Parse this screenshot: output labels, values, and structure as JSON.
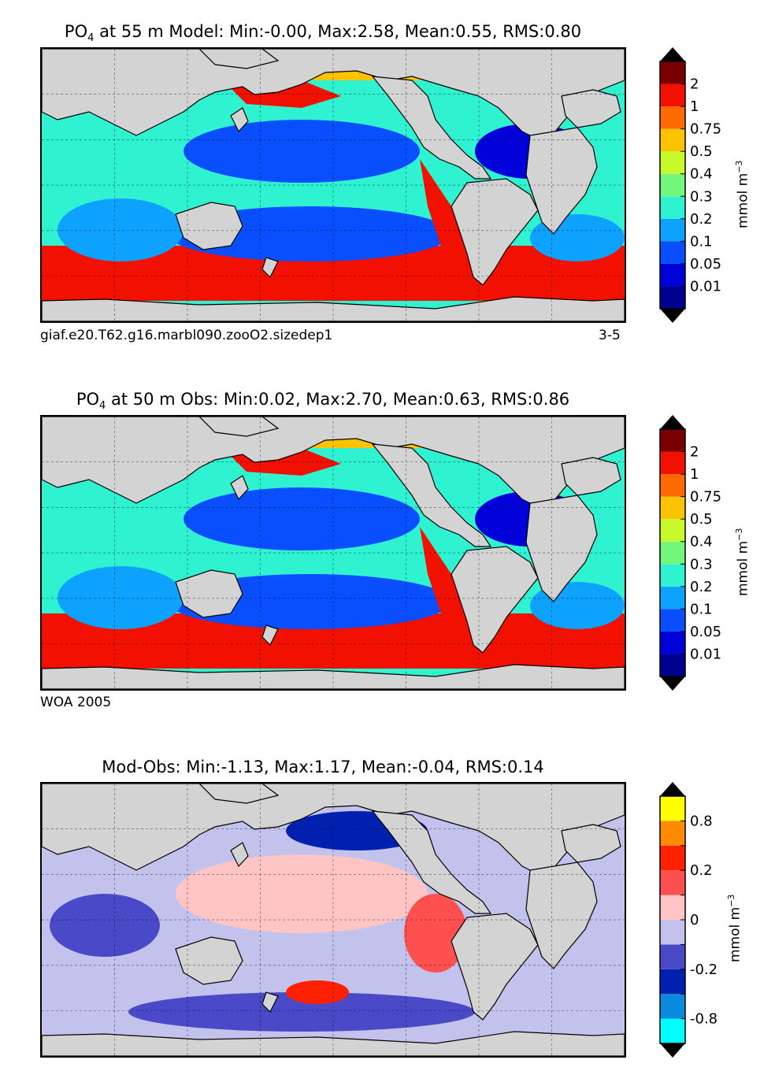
{
  "panels": [
    {
      "title_main": "PO",
      "title_sub": "4",
      "title_rest": " at 55 m Model: Min:-0.00, Max:2.58, Mean:0.55, RMS:0.80",
      "caption_left": "giaf.e20.T62.g16.marbl090.zooO2.sizedep1",
      "caption_right": "3-5",
      "colorbar": {
        "unit": "mmol m",
        "unit_exp": "−3",
        "levels": [
          "0.01",
          "0.05",
          "0.1",
          "0.2",
          "0.3",
          "0.4",
          "0.5",
          "0.75",
          "1",
          "2"
        ],
        "colors": [
          "#00008f",
          "#0000d9",
          "#0a4fff",
          "#0ea2ff",
          "#2ff2d0",
          "#73f77a",
          "#c8fa2b",
          "#fcc400",
          "#ff6a00",
          "#f21000",
          "#7a0000"
        ]
      }
    },
    {
      "title_main": "PO",
      "title_sub": "4",
      "title_rest": " at 50 m Obs: Min:0.02, Max:2.70, Mean:0.63, RMS:0.86",
      "caption_left": "WOA 2005",
      "caption_right": "",
      "colorbar": {
        "unit": "mmol m",
        "unit_exp": "−3",
        "levels": [
          "0.01",
          "0.05",
          "0.1",
          "0.2",
          "0.3",
          "0.4",
          "0.5",
          "0.75",
          "1",
          "2"
        ],
        "colors": [
          "#00008f",
          "#0000d9",
          "#0a4fff",
          "#0ea2ff",
          "#2ff2d0",
          "#73f77a",
          "#c8fa2b",
          "#fcc400",
          "#ff6a00",
          "#f21000",
          "#7a0000"
        ]
      }
    },
    {
      "title_main": "Mod-Obs: Min:-1.13, Max:1.17, Mean:-0.04, RMS:0.14",
      "title_sub": "",
      "title_rest": "",
      "caption_left": "",
      "caption_right": "",
      "colorbar": {
        "unit": "mmol m",
        "unit_exp": "−3",
        "levels": [
          "-0.8",
          "",
          "-0.2",
          "",
          "0",
          "",
          "0.2",
          "",
          "0.8",
          ""
        ],
        "colors": [
          "#00ffff",
          "#0a8adf",
          "#0020b0",
          "#4a4ac8",
          "#c2c2ec",
          "#ffc4c4",
          "#ff5050",
          "#ff2000",
          "#ff8a00",
          "#ffff00"
        ]
      }
    }
  ],
  "map_colors": {
    "land": "#d3d3d3",
    "ocean_low": "#0a4fff",
    "ocean_mid": "#2ff2d0",
    "ocean_high": "#f21000",
    "diff_neg": "#c2c2ec",
    "diff_pos": "#ffc4c4"
  }
}
